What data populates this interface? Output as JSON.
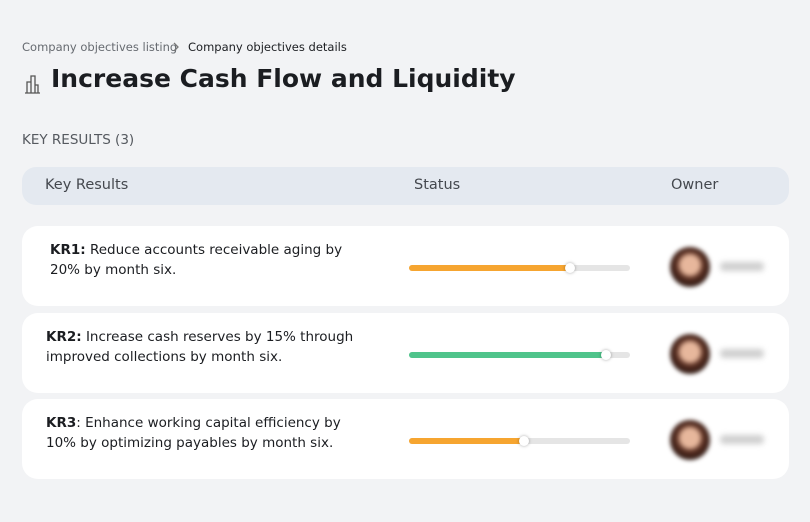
{
  "breadcrumb": {
    "parent": "Company objectives listing",
    "current": "Company objectives details"
  },
  "title": "Increase Cash Flow and Liquidity",
  "section_title": "KEY RESULTS (3)",
  "table": {
    "columns": [
      "Key Results",
      "Status",
      "Owner"
    ],
    "rows": [
      {
        "id": "KR1:",
        "text": " Reduce accounts receivable aging by 20% by month six.",
        "progress": 0.73,
        "color": "#f6a530"
      },
      {
        "id": "KR2:",
        "text": " Increase cash reserves by 15% through improved collections by month six.",
        "progress": 0.89,
        "color": "#4fc48b"
      },
      {
        "id": "KR3",
        "text": ": Enhance working capital efficiency by 10% by optimizing payables by month six.",
        "progress": 0.52,
        "color": "#f6a530"
      }
    ]
  }
}
